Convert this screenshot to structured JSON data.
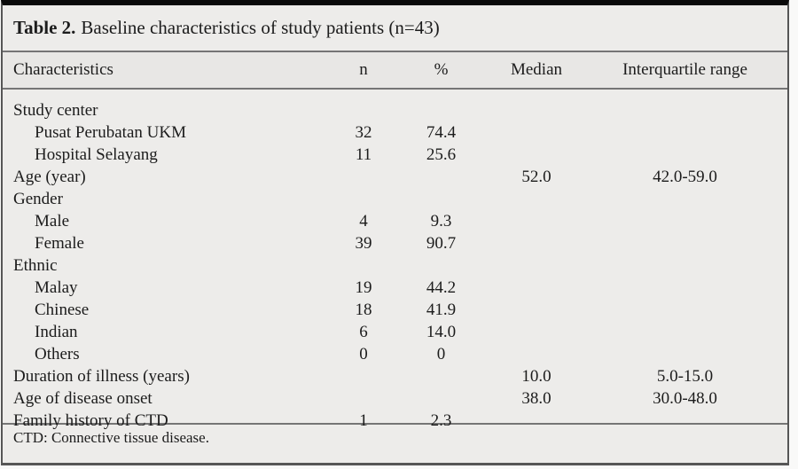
{
  "table": {
    "title_label": "Table 2.",
    "title_text": "Baseline characteristics of study patients (n=43)",
    "columns": [
      "Characteristics",
      "n",
      "%",
      "Median",
      "Interquartile range"
    ],
    "rows": [
      {
        "label": "Study center",
        "indent": 0,
        "n": "",
        "pct": "",
        "median": "",
        "iqr": ""
      },
      {
        "label": "Pusat Perubatan UKM",
        "indent": 1,
        "n": "32",
        "pct": "74.4",
        "median": "",
        "iqr": ""
      },
      {
        "label": "Hospital Selayang",
        "indent": 1,
        "n": "11",
        "pct": "25.6",
        "median": "",
        "iqr": ""
      },
      {
        "label": "Age (year)",
        "indent": 0,
        "n": "",
        "pct": "",
        "median": "52.0",
        "iqr": "42.0-59.0"
      },
      {
        "label": "Gender",
        "indent": 0,
        "n": "",
        "pct": "",
        "median": "",
        "iqr": ""
      },
      {
        "label": "Male",
        "indent": 1,
        "n": "4",
        "pct": "9.3",
        "median": "",
        "iqr": ""
      },
      {
        "label": "Female",
        "indent": 1,
        "n": "39",
        "pct": "90.7",
        "median": "",
        "iqr": ""
      },
      {
        "label": "Ethnic",
        "indent": 0,
        "n": "",
        "pct": "",
        "median": "",
        "iqr": ""
      },
      {
        "label": "Malay",
        "indent": 1,
        "n": "19",
        "pct": "44.2",
        "median": "",
        "iqr": ""
      },
      {
        "label": "Chinese",
        "indent": 1,
        "n": "18",
        "pct": "41.9",
        "median": "",
        "iqr": ""
      },
      {
        "label": "Indian",
        "indent": 1,
        "n": "6",
        "pct": "14.0",
        "median": "",
        "iqr": ""
      },
      {
        "label": "Others",
        "indent": 1,
        "n": "0",
        "pct": "0",
        "median": "",
        "iqr": ""
      },
      {
        "label": "Duration of illness (years)",
        "indent": 0,
        "n": "",
        "pct": "",
        "median": "10.0",
        "iqr": "5.0-15.0"
      },
      {
        "label": "Age of disease onset",
        "indent": 0,
        "n": "",
        "pct": "",
        "median": "38.0",
        "iqr": "30.0-48.0"
      },
      {
        "label": "Family history of CTD",
        "indent": 0,
        "n": "1",
        "pct": "2.3",
        "median": "",
        "iqr": ""
      }
    ],
    "footnote": "CTD: Connective tissue disease.",
    "colors": {
      "panel_background": "#edecea",
      "header_band": "#e8e7e5",
      "rule": "#757575",
      "top_border": "#0a0a0a",
      "text": "#1c1c1c"
    }
  }
}
